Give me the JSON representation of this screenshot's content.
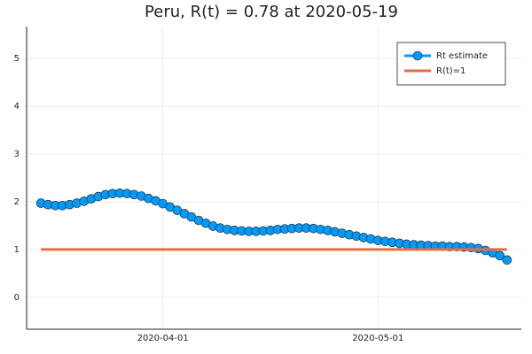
{
  "chart_data": {
    "type": "line",
    "title": "Peru, R(t) = 0.78 at 2020-05-19",
    "x": [
      "2020-03-15",
      "2020-03-16",
      "2020-03-17",
      "2020-03-18",
      "2020-03-19",
      "2020-03-20",
      "2020-03-21",
      "2020-03-22",
      "2020-03-23",
      "2020-03-24",
      "2020-03-25",
      "2020-03-26",
      "2020-03-27",
      "2020-03-28",
      "2020-03-29",
      "2020-03-30",
      "2020-03-31",
      "2020-04-01",
      "2020-04-02",
      "2020-04-03",
      "2020-04-04",
      "2020-04-05",
      "2020-04-06",
      "2020-04-07",
      "2020-04-08",
      "2020-04-09",
      "2020-04-10",
      "2020-04-11",
      "2020-04-12",
      "2020-04-13",
      "2020-04-14",
      "2020-04-15",
      "2020-04-16",
      "2020-04-17",
      "2020-04-18",
      "2020-04-19",
      "2020-04-20",
      "2020-04-21",
      "2020-04-22",
      "2020-04-23",
      "2020-04-24",
      "2020-04-25",
      "2020-04-26",
      "2020-04-27",
      "2020-04-28",
      "2020-04-29",
      "2020-04-30",
      "2020-05-01",
      "2020-05-02",
      "2020-05-03",
      "2020-05-04",
      "2020-05-05",
      "2020-05-06",
      "2020-05-07",
      "2020-05-08",
      "2020-05-09",
      "2020-05-10",
      "2020-05-11",
      "2020-05-12",
      "2020-05-13",
      "2020-05-14",
      "2020-05-15",
      "2020-05-16",
      "2020-05-17",
      "2020-05-18",
      "2020-05-19"
    ],
    "series": [
      {
        "name": "Rt estimate",
        "color": "#009af9",
        "markers": true,
        "values": [
          1.97,
          1.94,
          1.92,
          1.92,
          1.94,
          1.97,
          2.01,
          2.06,
          2.11,
          2.15,
          2.17,
          2.18,
          2.17,
          2.15,
          2.12,
          2.07,
          2.02,
          1.96,
          1.89,
          1.82,
          1.75,
          1.68,
          1.61,
          1.55,
          1.49,
          1.45,
          1.42,
          1.4,
          1.39,
          1.38,
          1.38,
          1.39,
          1.4,
          1.42,
          1.43,
          1.44,
          1.45,
          1.45,
          1.44,
          1.42,
          1.4,
          1.37,
          1.34,
          1.31,
          1.28,
          1.25,
          1.22,
          1.19,
          1.17,
          1.15,
          1.13,
          1.11,
          1.1,
          1.09,
          1.08,
          1.07,
          1.07,
          1.06,
          1.06,
          1.05,
          1.04,
          1.02,
          0.98,
          0.93,
          0.87,
          0.78
        ]
      },
      {
        "name": "R(t)=1",
        "color": "#e26f46",
        "markers": false,
        "x": [
          "2020-03-15",
          "2020-05-19"
        ],
        "values": [
          1,
          1
        ]
      }
    ],
    "xlim": [
      "2020-03-13",
      "2020-05-21"
    ],
    "xticks": [
      "2020-04-01",
      "2020-05-01"
    ],
    "ylim": [
      -0.67,
      5.67
    ],
    "yticks": [
      0,
      1,
      2,
      3,
      4,
      5
    ],
    "grid": true,
    "legend": "top-right"
  }
}
